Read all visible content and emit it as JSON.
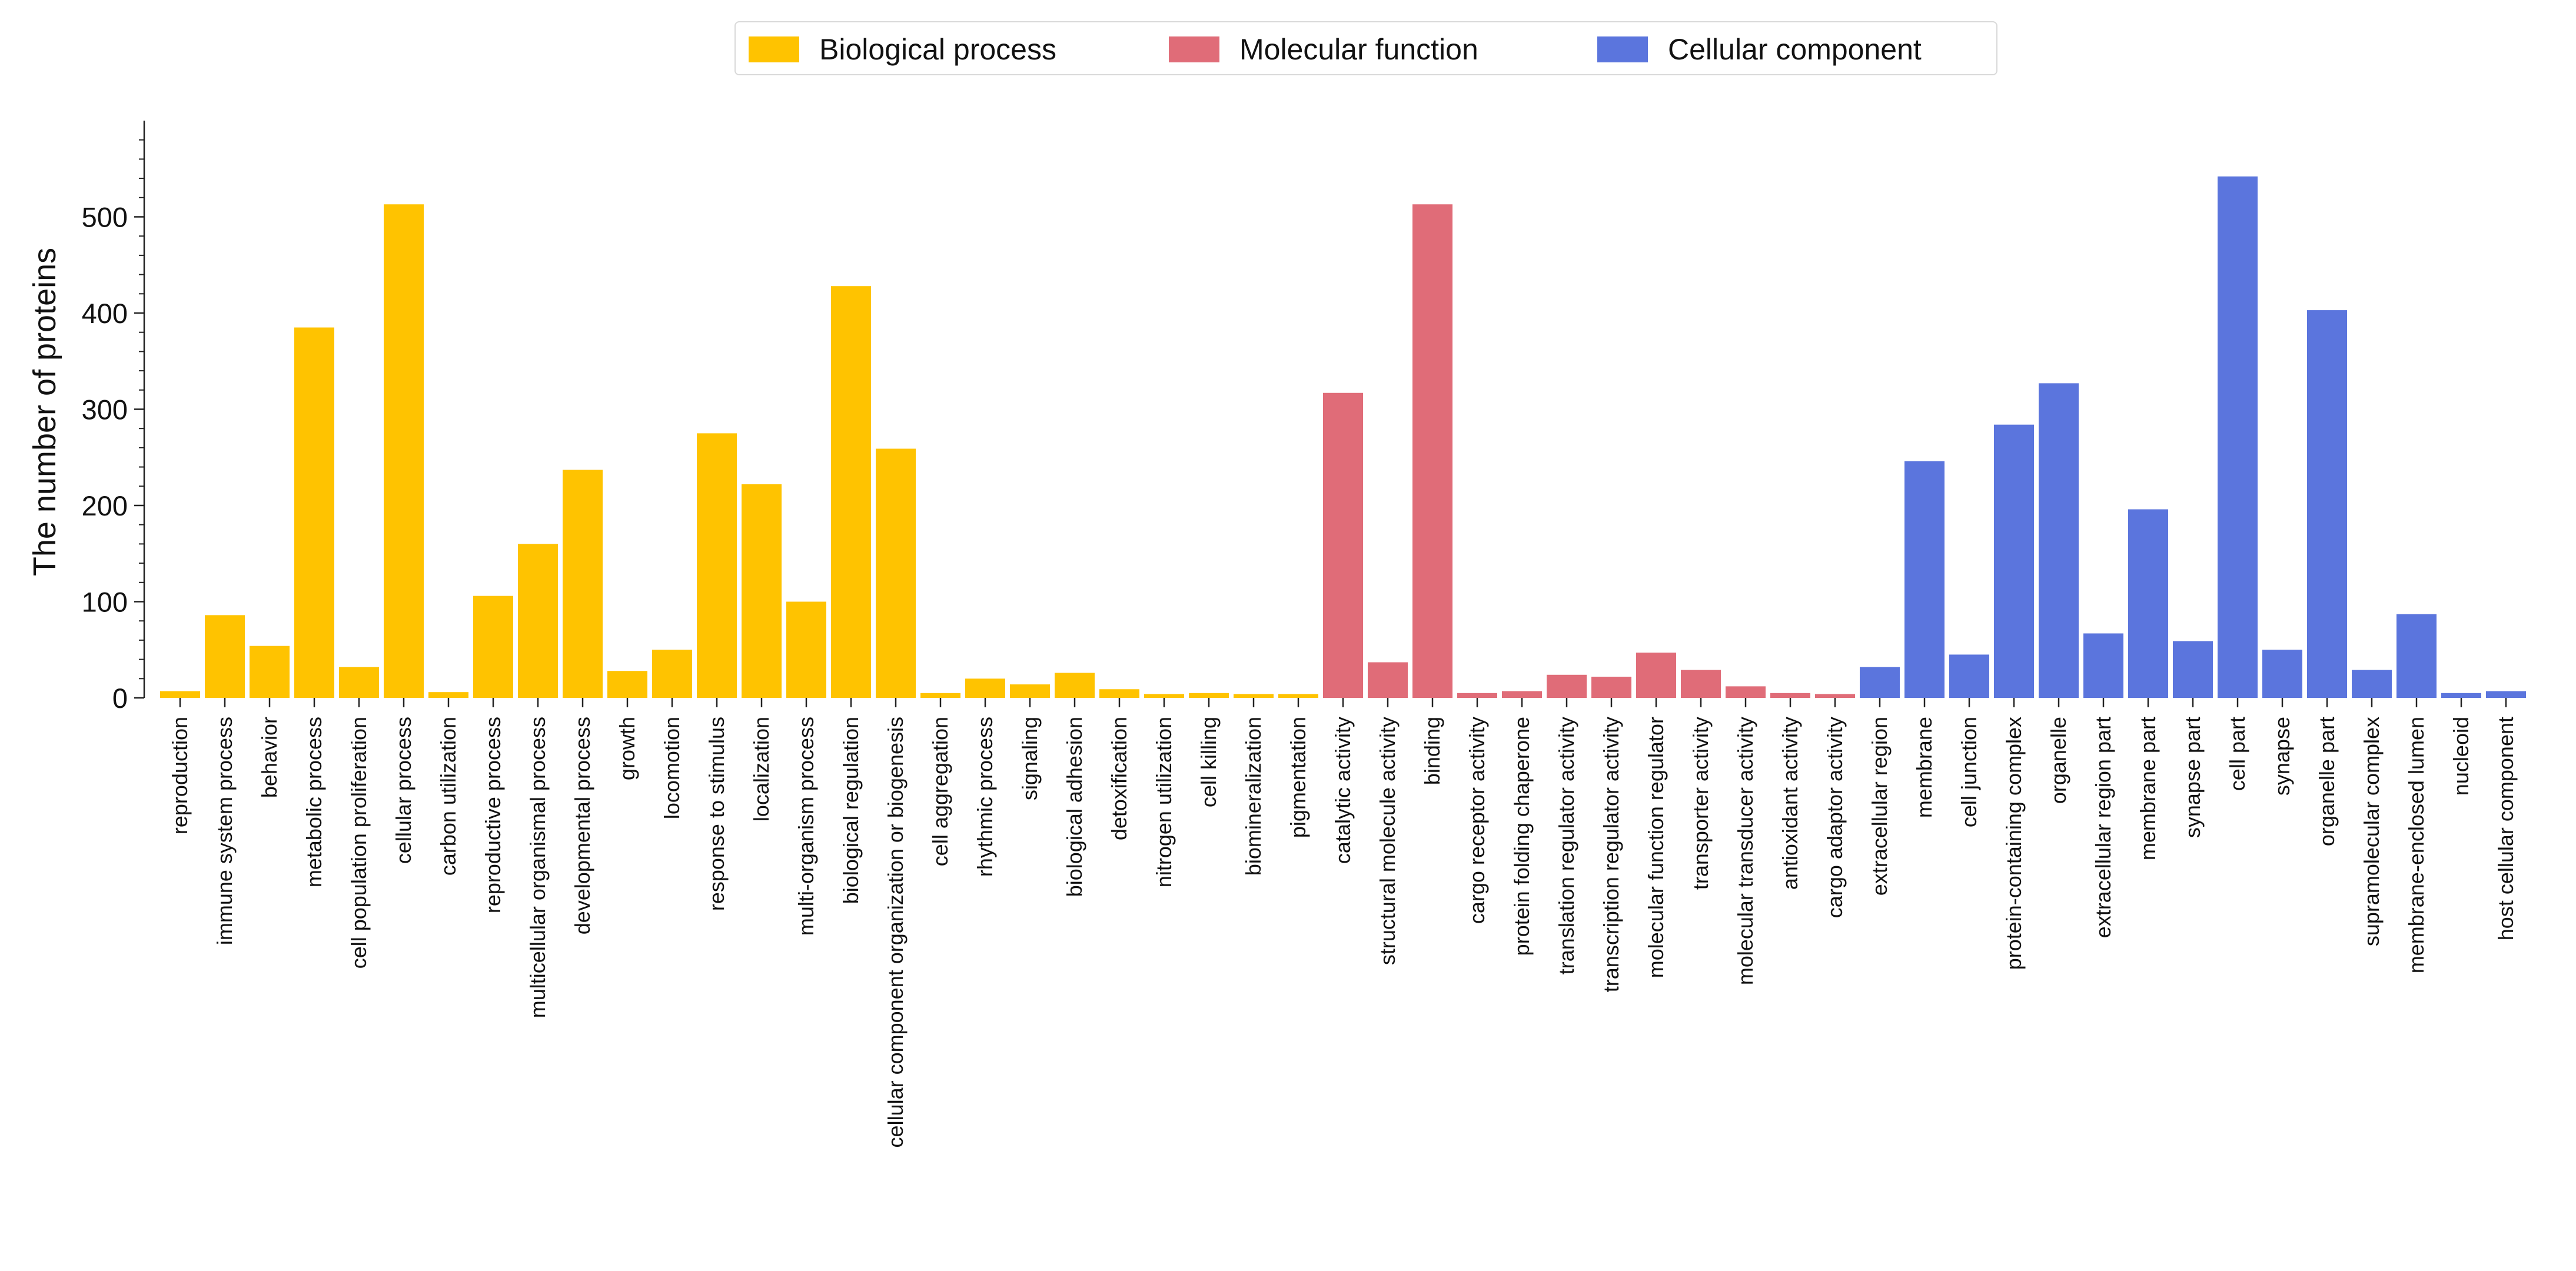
{
  "chart_data": {
    "type": "bar",
    "title": "",
    "xlabel": "",
    "ylabel": "The number of proteins",
    "ylim": [
      0,
      600
    ],
    "yticks": [
      0,
      100,
      200,
      300,
      400,
      500
    ],
    "grid": false,
    "legend_position": "top-center",
    "series": [
      {
        "name": "Biological process",
        "color": "#FFC300"
      },
      {
        "name": "Molecular function",
        "color": "#E06C78"
      },
      {
        "name": "Cellular component",
        "color": "#5B75DD"
      }
    ],
    "categories": [
      "reproduction",
      "immune system process",
      "behavior",
      "metabolic process",
      "cell population proliferation",
      "cellular process",
      "carbon utilization",
      "reproductive process",
      "multicellular organismal process",
      "developmental process",
      "growth",
      "locomotion",
      "response to stimulus",
      "localization",
      "multi-organism process",
      "biological regulation",
      "cellular component organization or biogenesis",
      "cell aggregation",
      "rhythmic process",
      "signaling",
      "biological adhesion",
      "detoxification",
      "nitrogen utilization",
      "cell killing",
      "biomineralization",
      "pigmentation",
      "catalytic activity",
      "structural molecule activity",
      "binding",
      "cargo receptor activity",
      "protein folding chaperone",
      "translation regulator activity",
      "transcription regulator activity",
      "molecular function regulator",
      "transporter activity",
      "molecular transducer activity",
      "antioxidant activity",
      "cargo adaptor activity",
      "extracellular region",
      "membrane",
      "cell junction",
      "protein-containing complex",
      "organelle",
      "extracellular region part",
      "membrane part",
      "synapse part",
      "cell part",
      "synapse",
      "organelle part",
      "supramolecular complex",
      "membrane-enclosed lumen",
      "nucleoid",
      "host cellular component"
    ],
    "values": [
      7,
      86,
      54,
      385,
      32,
      513,
      6,
      106,
      160,
      237,
      28,
      50,
      275,
      222,
      100,
      428,
      259,
      5,
      20,
      14,
      26,
      9,
      4,
      5,
      4,
      4,
      317,
      37,
      513,
      5,
      7,
      24,
      22,
      47,
      29,
      12,
      5,
      4,
      32,
      246,
      45,
      284,
      327,
      67,
      196,
      59,
      542,
      50,
      403,
      29,
      87,
      5,
      7
    ],
    "groups": [
      0,
      0,
      0,
      0,
      0,
      0,
      0,
      0,
      0,
      0,
      0,
      0,
      0,
      0,
      0,
      0,
      0,
      0,
      0,
      0,
      0,
      0,
      0,
      0,
      0,
      0,
      1,
      1,
      1,
      1,
      1,
      1,
      1,
      1,
      1,
      1,
      1,
      1,
      2,
      2,
      2,
      2,
      2,
      2,
      2,
      2,
      2,
      2,
      2,
      2,
      2,
      2,
      2
    ]
  }
}
